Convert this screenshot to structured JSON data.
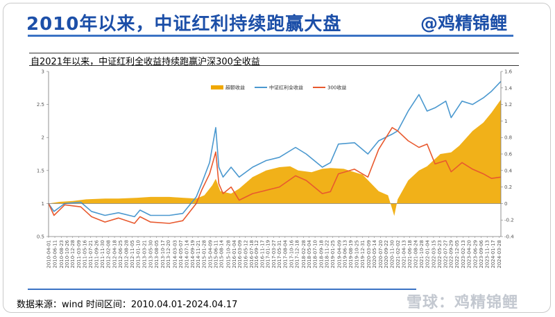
{
  "header": {
    "title": "2010年以来，中证红利持续跑赢大盘",
    "author": "@鸡精锦鲤"
  },
  "subtitle": "自2021年以来，中证红利全收益持续跑赢沪深300全收益",
  "footer": {
    "source": "数据来源：wind 时间区间：2010.04.01-2024.04.17",
    "watermark": "雪球：鸡精锦鲤"
  },
  "colors": {
    "accent": "#1c4fa8",
    "excess_fill": "#f0a800",
    "dividend_line": "#4a98cf",
    "csi300_line": "#e8592e"
  },
  "chart_data": {
    "type": "line",
    "date_start": "2010-04-01",
    "date_end": "2024-04-17",
    "x_tick_labels": [
      "2010-04-01",
      "2010-06-11",
      "2010-08-23",
      "2010-10-26",
      "2010-12-28",
      "2011-03-09",
      "2011-05-16",
      "2011-07-21",
      "2011-09-26",
      "2011-11-30",
      "2012-02-08",
      "2012-04-18",
      "2012-06-25",
      "2012-08-28",
      "2012-11-05",
      "2013-01-10",
      "2013-03-21",
      "2013-05-30",
      "2013-08-05",
      "2013-10-17",
      "2013-12-20",
      "2014-03-03",
      "2014-05-07",
      "2014-07-14",
      "2014-09-19",
      "2014-11-21",
      "2015-01-28",
      "2015-04-09",
      "2015-06-11",
      "2015-08-14",
      "2015-10-28",
      "2016-01-04",
      "2016-03-09",
      "2016-05-12",
      "2016-07-18",
      "2016-09-12",
      "2016-11-17",
      "2017-01-19",
      "2017-03-27",
      "2017-05-31",
      "2017-08-04",
      "2017-10-16",
      "2017-12-18",
      "2018-02-28",
      "2018-05-04",
      "2018-07-10",
      "2018-09-18",
      "2018-11-22",
      "2019-01-25",
      "2019-04-09",
      "2019-06-13",
      "2019-08-19",
      "2019-10-25",
      "2019-12-31",
      "2020-03-09",
      "2020-05-14",
      "2020-07-20",
      "2020-09-22",
      "2020-11-30",
      "2021-02-02",
      "2021-04-13",
      "2021-06-18",
      "2021-08-24",
      "2021-10-28",
      "2022-01-04",
      "2022-03-15",
      "2022-05-23",
      "2022-07-27",
      "2022-09-29",
      "2022-12-05",
      "2023-02-13",
      "2023-04-20",
      "2023-06-29",
      "2023-09-06",
      "2023-11-13",
      "2024-01-17",
      "2024-03-28"
    ],
    "y_left": {
      "range": [
        0.5,
        3
      ],
      "ticks": [
        0.5,
        1,
        1.5,
        2,
        2.5,
        3
      ]
    },
    "y_right": {
      "range": [
        -0.4,
        1.6
      ],
      "ticks": [
        -0.4,
        -0.2,
        0,
        0.2,
        0.4,
        0.6,
        0.8,
        1,
        1.2,
        1.4,
        1.6
      ]
    },
    "series": [
      {
        "name": "超额收益",
        "kind": "area",
        "axis": "right",
        "x": [
          "2010-04-01",
          "2010-08-01",
          "2011-01-01",
          "2011-06-01",
          "2012-01-01",
          "2012-06-01",
          "2013-01-01",
          "2013-06-01",
          "2014-01-01",
          "2014-06-01",
          "2014-11-01",
          "2015-02-01",
          "2015-05-01",
          "2015-06-10",
          "2015-08-01",
          "2015-12-01",
          "2016-03-01",
          "2016-08-01",
          "2017-01-01",
          "2017-06-01",
          "2017-10-01",
          "2018-01-01",
          "2018-06-01",
          "2018-10-01",
          "2019-01-01",
          "2019-06-01",
          "2019-10-01",
          "2020-01-01",
          "2020-07-01",
          "2020-09-01",
          "2020-10-15",
          "2020-12-25",
          "2021-02-01",
          "2021-06-01",
          "2021-10-01",
          "2022-01-01",
          "2022-06-01",
          "2022-10-01",
          "2023-01-01",
          "2023-06-01",
          "2023-10-01",
          "2024-01-01",
          "2024-04-17"
        ],
        "values": [
          0.0,
          0.02,
          0.03,
          0.05,
          0.06,
          0.06,
          0.07,
          0.08,
          0.08,
          0.07,
          0.06,
          0.1,
          0.22,
          0.3,
          0.15,
          0.12,
          0.18,
          0.32,
          0.4,
          0.44,
          0.45,
          0.4,
          0.38,
          0.42,
          0.43,
          0.42,
          0.38,
          0.35,
          0.15,
          0.12,
          0.1,
          -0.15,
          0.05,
          0.28,
          0.4,
          0.45,
          0.6,
          0.62,
          0.7,
          0.88,
          0.98,
          1.1,
          1.26
        ]
      },
      {
        "name": "中证红利全收益",
        "kind": "line",
        "axis": "left",
        "x": [
          "2010-04-01",
          "2010-06-01",
          "2010-10-01",
          "2011-04-01",
          "2011-08-01",
          "2012-01-01",
          "2012-06-01",
          "2012-12-01",
          "2013-02-01",
          "2013-06-01",
          "2014-01-01",
          "2014-06-01",
          "2014-11-01",
          "2015-01-01",
          "2015-04-01",
          "2015-06-10",
          "2015-07-15",
          "2015-09-01",
          "2015-12-01",
          "2016-03-01",
          "2016-08-01",
          "2017-01-01",
          "2017-06-01",
          "2017-12-01",
          "2018-04-01",
          "2018-10-01",
          "2019-01-01",
          "2019-04-01",
          "2019-10-01",
          "2020-03-01",
          "2020-07-01",
          "2020-12-01",
          "2021-02-01",
          "2021-06-01",
          "2021-10-01",
          "2022-01-01",
          "2022-04-01",
          "2022-08-01",
          "2022-10-01",
          "2023-02-01",
          "2023-06-01",
          "2023-10-01",
          "2024-01-01",
          "2024-04-17"
        ],
        "values": [
          1.0,
          0.88,
          1.0,
          1.02,
          0.88,
          0.82,
          0.86,
          0.8,
          0.9,
          0.82,
          0.82,
          0.85,
          1.1,
          1.3,
          1.62,
          2.15,
          1.55,
          1.4,
          1.55,
          1.4,
          1.55,
          1.65,
          1.7,
          1.85,
          1.75,
          1.55,
          1.62,
          1.9,
          1.92,
          1.75,
          1.95,
          2.05,
          2.1,
          2.4,
          2.65,
          2.4,
          2.45,
          2.55,
          2.3,
          2.55,
          2.5,
          2.6,
          2.7,
          2.85
        ]
      },
      {
        "name": "300收益",
        "kind": "line",
        "axis": "left",
        "x": [
          "2010-04-01",
          "2010-06-01",
          "2010-10-01",
          "2011-04-01",
          "2011-08-01",
          "2012-01-01",
          "2012-06-01",
          "2012-12-01",
          "2013-02-01",
          "2013-06-01",
          "2014-01-01",
          "2014-06-01",
          "2014-11-01",
          "2015-01-01",
          "2015-04-01",
          "2015-06-10",
          "2015-07-15",
          "2015-09-01",
          "2015-12-01",
          "2016-03-01",
          "2016-08-01",
          "2017-01-01",
          "2017-06-01",
          "2017-12-01",
          "2018-04-01",
          "2018-10-01",
          "2019-01-01",
          "2019-04-01",
          "2019-10-01",
          "2020-03-01",
          "2020-07-01",
          "2020-12-01",
          "2021-02-01",
          "2021-06-01",
          "2021-10-01",
          "2022-01-01",
          "2022-04-01",
          "2022-08-01",
          "2022-10-01",
          "2023-02-01",
          "2023-06-01",
          "2023-10-01",
          "2024-01-01",
          "2024-04-17"
        ],
        "values": [
          1.0,
          0.82,
          0.98,
          0.95,
          0.8,
          0.72,
          0.78,
          0.7,
          0.8,
          0.72,
          0.7,
          0.74,
          1.0,
          1.2,
          1.45,
          1.78,
          1.3,
          1.15,
          1.25,
          1.05,
          1.15,
          1.2,
          1.25,
          1.42,
          1.35,
          1.15,
          1.18,
          1.45,
          1.52,
          1.4,
          1.82,
          2.15,
          2.1,
          1.95,
          1.85,
          1.9,
          1.6,
          1.65,
          1.48,
          1.62,
          1.52,
          1.45,
          1.38,
          1.4
        ]
      }
    ],
    "legend": [
      "超额收益",
      "中证红利全收益",
      "300收益"
    ],
    "legend_position": "top-center",
    "grid": false
  }
}
